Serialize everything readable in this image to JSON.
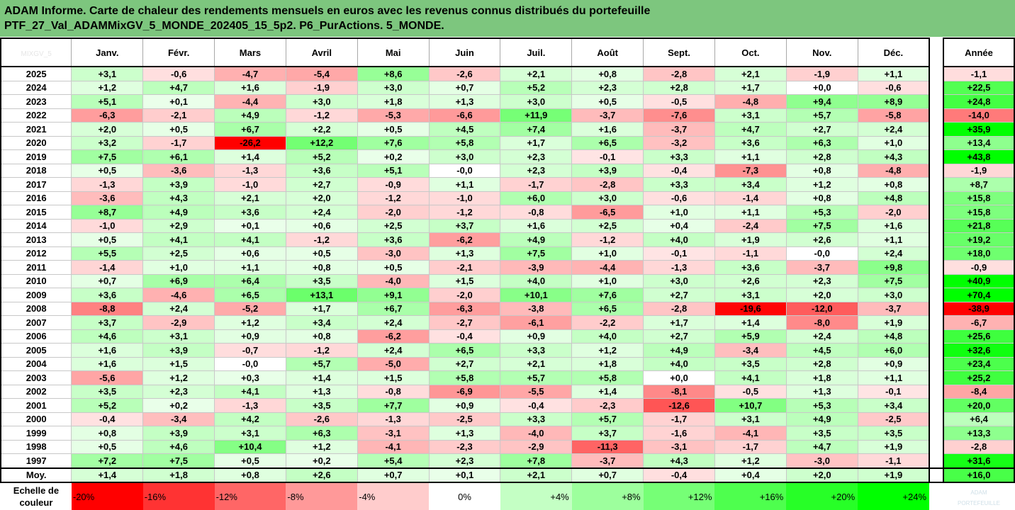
{
  "title": {
    "line1": "ADAM Informe. Carte de chaleur des rendements mensuels en euros avec les revenus connus distribués du portefeuille",
    "line2": "PTF_27_Val_ADAMMixGV_5_MONDE_202405_15_5p2. P6_PurActions. 5_MONDE."
  },
  "corner_text": "MIXGV_5",
  "logo_text": "ADAM\nPORTEFEUILLE",
  "chart_data": {
    "type": "heatmap",
    "columns": [
      "Janv.",
      "Févr.",
      "Mars",
      "Avril",
      "Mai",
      "Juin",
      "Juil.",
      "Août",
      "Sept.",
      "Oct.",
      "Nov.",
      "Déc."
    ],
    "year_column": "Année",
    "rows": [
      {
        "year": "2025",
        "values": [
          "+3,1",
          "-0,6",
          "-4,7",
          "-5,4",
          "+8,6",
          "-2,6",
          "+2,1",
          "+0,8",
          "-2,8",
          "+2,1",
          "-1,9",
          "+1,1"
        ],
        "annual": "-1,1"
      },
      {
        "year": "2024",
        "values": [
          "+1,2",
          "+4,7",
          "+1,6",
          "-1,9",
          "+3,0",
          "+0,7",
          "+5,2",
          "+2,3",
          "+2,8",
          "+1,7",
          "+0,0",
          "-0,6"
        ],
        "annual": "+22,5"
      },
      {
        "year": "2023",
        "values": [
          "+5,1",
          "+0,1",
          "-4,4",
          "+3,0",
          "+1,8",
          "+1,3",
          "+3,0",
          "+0,5",
          "-0,5",
          "-4,8",
          "+9,4",
          "+8,9"
        ],
        "annual": "+24,8"
      },
      {
        "year": "2022",
        "values": [
          "-6,3",
          "-2,1",
          "+4,9",
          "-1,2",
          "-5,3",
          "-6,6",
          "+11,9",
          "-3,7",
          "-7,6",
          "+3,1",
          "+5,7",
          "-5,8"
        ],
        "annual": "-14,0"
      },
      {
        "year": "2021",
        "values": [
          "+2,0",
          "+0,5",
          "+6,7",
          "+2,2",
          "+0,5",
          "+4,5",
          "+7,4",
          "+1,6",
          "-3,7",
          "+4,7",
          "+2,7",
          "+2,4"
        ],
        "annual": "+35,9"
      },
      {
        "year": "2020",
        "values": [
          "+3,2",
          "-1,7",
          "-26,2",
          "+12,2",
          "+7,6",
          "+5,8",
          "+1,7",
          "+6,5",
          "-3,2",
          "+3,6",
          "+6,3",
          "+1,0"
        ],
        "annual": "+13,4"
      },
      {
        "year": "2019",
        "values": [
          "+7,5",
          "+6,1",
          "+1,4",
          "+5,2",
          "+0,2",
          "+3,0",
          "+2,3",
          "-0,1",
          "+3,3",
          "+1,1",
          "+2,8",
          "+4,3"
        ],
        "annual": "+43,8"
      },
      {
        "year": "2018",
        "values": [
          "+0,5",
          "-3,6",
          "-1,3",
          "+3,6",
          "+5,1",
          "-0,0",
          "+2,3",
          "+3,9",
          "-0,4",
          "-7,3",
          "+0,8",
          "-4,8"
        ],
        "annual": "-1,9"
      },
      {
        "year": "2017",
        "values": [
          "-1,3",
          "+3,9",
          "-1,0",
          "+2,7",
          "-0,9",
          "+1,1",
          "-1,7",
          "-2,8",
          "+3,3",
          "+3,4",
          "+1,2",
          "+0,8"
        ],
        "annual": "+8,7"
      },
      {
        "year": "2016",
        "values": [
          "-3,6",
          "+4,3",
          "+2,1",
          "+2,0",
          "-1,2",
          "-1,0",
          "+6,0",
          "+3,0",
          "-0,6",
          "-1,4",
          "+0,8",
          "+4,8"
        ],
        "annual": "+15,8"
      },
      {
        "year": "2015",
        "values": [
          "+8,7",
          "+4,9",
          "+3,6",
          "+2,4",
          "-2,0",
          "-1,2",
          "-0,8",
          "-6,5",
          "+1,0",
          "+1,1",
          "+5,3",
          "-2,0"
        ],
        "annual": "+15,8"
      },
      {
        "year": "2014",
        "values": [
          "-1,0",
          "+2,9",
          "+0,1",
          "+0,6",
          "+2,5",
          "+3,7",
          "+1,6",
          "+2,5",
          "+0,4",
          "-2,4",
          "+7,5",
          "+1,6"
        ],
        "annual": "+21,8"
      },
      {
        "year": "2013",
        "values": [
          "+0,5",
          "+4,1",
          "+4,1",
          "-1,2",
          "+3,6",
          "-6,2",
          "+4,9",
          "-1,2",
          "+4,0",
          "+1,9",
          "+2,6",
          "+1,1"
        ],
        "annual": "+19,2"
      },
      {
        "year": "2012",
        "values": [
          "+5,5",
          "+2,5",
          "+0,6",
          "+0,5",
          "-3,0",
          "+1,3",
          "+7,5",
          "+1,0",
          "-0,1",
          "-1,1",
          "-0,0",
          "+2,4"
        ],
        "annual": "+18,0"
      },
      {
        "year": "2011",
        "values": [
          "-1,4",
          "+1,0",
          "+1,1",
          "+0,8",
          "+0,5",
          "-2,1",
          "-3,9",
          "-4,4",
          "-1,3",
          "+3,6",
          "-3,7",
          "+9,8"
        ],
        "annual": "-0,9"
      },
      {
        "year": "2010",
        "values": [
          "+0,7",
          "+6,9",
          "+6,4",
          "+3,5",
          "-4,0",
          "+1,5",
          "+4,0",
          "+1,0",
          "+3,0",
          "+2,6",
          "+2,3",
          "+7,5"
        ],
        "annual": "+40,9"
      },
      {
        "year": "2009",
        "values": [
          "+3,6",
          "-4,6",
          "+6,5",
          "+13,1",
          "+9,1",
          "-2,0",
          "+10,1",
          "+7,6",
          "+2,7",
          "+3,1",
          "+2,0",
          "+3,0"
        ],
        "annual": "+70,4"
      },
      {
        "year": "2008",
        "values": [
          "-8,8",
          "+2,4",
          "-5,2",
          "+1,7",
          "+6,7",
          "-6,3",
          "-3,8",
          "+6,5",
          "-2,8",
          "-19,6",
          "-12,0",
          "-3,7"
        ],
        "annual": "-38,9"
      },
      {
        "year": "2007",
        "values": [
          "+3,7",
          "-2,9",
          "+1,2",
          "+3,4",
          "+2,4",
          "-2,7",
          "-6,1",
          "-2,2",
          "+1,7",
          "+1,4",
          "-8,0",
          "+1,9"
        ],
        "annual": "-6,7"
      },
      {
        "year": "2006",
        "values": [
          "+4,6",
          "+3,1",
          "+0,9",
          "+0,8",
          "-6,2",
          "-0,4",
          "+0,9",
          "+4,0",
          "+2,7",
          "+5,9",
          "+2,4",
          "+4,8"
        ],
        "annual": "+25,6"
      },
      {
        "year": "2005",
        "values": [
          "+1,6",
          "+3,9",
          "-0,7",
          "-1,2",
          "+2,4",
          "+6,5",
          "+3,3",
          "+1,2",
          "+4,9",
          "-3,4",
          "+4,5",
          "+6,0"
        ],
        "annual": "+32,6"
      },
      {
        "year": "2004",
        "values": [
          "+1,6",
          "+1,5",
          "-0,0",
          "+5,7",
          "-5,0",
          "+2,7",
          "+2,1",
          "+1,8",
          "+4,0",
          "+3,5",
          "+2,8",
          "+0,9"
        ],
        "annual": "+23,4"
      },
      {
        "year": "2003",
        "values": [
          "-5,6",
          "+1,2",
          "+0,3",
          "+1,4",
          "+1,5",
          "+5,8",
          "+5,7",
          "+5,8",
          "+0,0",
          "+4,1",
          "+1,8",
          "+1,1"
        ],
        "annual": "+25,2"
      },
      {
        "year": "2002",
        "values": [
          "+3,5",
          "+2,3",
          "+4,1",
          "+1,3",
          "-0,8",
          "-6,9",
          "-5,5",
          "+1,4",
          "-8,1",
          "-0,5",
          "+1,3",
          "-0,1"
        ],
        "annual": "-8,4"
      },
      {
        "year": "2001",
        "values": [
          "+5,2",
          "+0,2",
          "-1,3",
          "+3,5",
          "+7,7",
          "+0,9",
          "-0,4",
          "-2,3",
          "-12,6",
          "+10,7",
          "+5,3",
          "+3,4"
        ],
        "annual": "+20,0"
      },
      {
        "year": "2000",
        "values": [
          "-0,4",
          "-3,4",
          "+4,2",
          "-2,6",
          "-1,3",
          "-2,5",
          "+3,3",
          "+5,7",
          "-1,7",
          "+3,1",
          "+4,9",
          "-2,5"
        ],
        "annual": "+6,4"
      },
      {
        "year": "1999",
        "values": [
          "+0,8",
          "+3,9",
          "+3,1",
          "+6,3",
          "-3,1",
          "+1,3",
          "-4,0",
          "+3,7",
          "-1,6",
          "-4,1",
          "+3,5",
          "+3,5"
        ],
        "annual": "+13,3"
      },
      {
        "year": "1998",
        "values": [
          "+0,5",
          "+4,6",
          "+10,4",
          "+1,2",
          "-4,1",
          "-2,3",
          "-2,9",
          "-11,3",
          "-3,1",
          "-1,7",
          "+4,7",
          "+1,9"
        ],
        "annual": "-2,8"
      },
      {
        "year": "1997",
        "values": [
          "+7,2",
          "+7,5",
          "+0,5",
          "+0,2",
          "+5,4",
          "+2,3",
          "+7,8",
          "-3,7",
          "+4,3",
          "+1,2",
          "-3,0",
          "-1,1"
        ],
        "annual": "+31,6"
      }
    ],
    "average": {
      "label": "Moy.",
      "values": [
        "+1,4",
        "+1,8",
        "+0,8",
        "+2,6",
        "+0,7",
        "+0,1",
        "+2,1",
        "+0,7",
        "-0,4",
        "+0,4",
        "+2,0",
        "+1,9"
      ],
      "annual": "+16,0"
    },
    "scale": {
      "label": "Echelle de couleur",
      "steps": [
        "-20%",
        "-16%",
        "-12%",
        "-8%",
        "-4%",
        "0%",
        "+4%",
        "+8%",
        "+12%",
        "+16%",
        "+20%",
        "+24%"
      ]
    },
    "colors": {
      "negative_max": "#ff0000",
      "positive_max": "#00ff00",
      "neutral": "#ffffff"
    }
  }
}
